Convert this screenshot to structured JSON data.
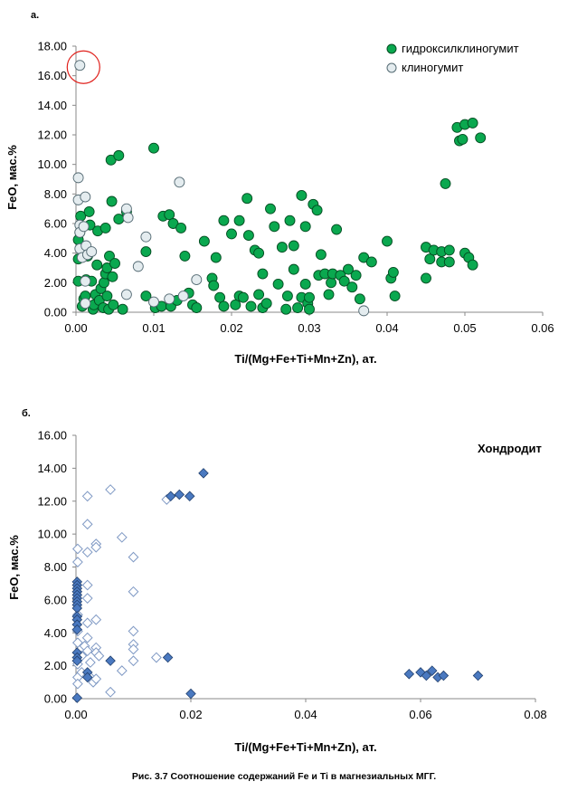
{
  "caption": "Рис. 3.7 Соотношение  содержаний Fe и Ti в магнезиальных  МГГ.",
  "colors": {
    "hydroxyl_fill": "#0aa84f",
    "hydroxyl_stroke": "#044d22",
    "clino_fill": "#e4ecef",
    "clino_stroke": "#556b74",
    "chondro_open_stroke": "#7f99c4",
    "chondro_filled_fill": "#4a79c0",
    "chondro_filled_stroke": "#22406e",
    "highlight_circle": "#e0211c"
  },
  "chart_data": [
    {
      "type": "scatter",
      "panel_label": "а.",
      "xlabel": "Ti/(Mg+Fe+Ti+Mn+Zn), ат.",
      "ylabel": "FeO, мас.%",
      "xlim": [
        0,
        0.06
      ],
      "ylim": [
        0,
        18
      ],
      "x_ticks": [
        "0.00",
        "0.01",
        "0.02",
        "0.03",
        "0.04",
        "0.05",
        "0.06"
      ],
      "y_ticks": [
        "0.00",
        "2.00",
        "4.00",
        "6.00",
        "8.00",
        "10.00",
        "12.00",
        "14.00",
        "16.00",
        "18.00"
      ],
      "grid": false,
      "legend": "top-right",
      "highlight": {
        "x": 0.0005,
        "y": 16.7
      },
      "series": [
        {
          "name": "гидроксилклиногумит",
          "marker": "circle",
          "points": [
            [
              0.0003,
              2.1
            ],
            [
              0.0003,
              3.6
            ],
            [
              0.0003,
              4.9
            ],
            [
              0.0005,
              5.4
            ],
            [
              0.0006,
              6.5
            ],
            [
              0.0008,
              0.4
            ],
            [
              0.001,
              0.9
            ],
            [
              0.0012,
              1.1
            ],
            [
              0.0013,
              2.2
            ],
            [
              0.0015,
              3.8
            ],
            [
              0.0017,
              6.8
            ],
            [
              0.0018,
              5.9
            ],
            [
              0.002,
              2.1
            ],
            [
              0.0022,
              0.2
            ],
            [
              0.0023,
              0.5
            ],
            [
              0.0025,
              1.2
            ],
            [
              0.0027,
              3.2
            ],
            [
              0.0028,
              5.5
            ],
            [
              0.003,
              0.8
            ],
            [
              0.0032,
              1.6
            ],
            [
              0.0035,
              0.3
            ],
            [
              0.0036,
              2.0
            ],
            [
              0.0038,
              2.6
            ],
            [
              0.0038,
              5.7
            ],
            [
              0.004,
              3.0
            ],
            [
              0.004,
              1.1
            ],
            [
              0.0042,
              0.2
            ],
            [
              0.0043,
              3.8
            ],
            [
              0.0045,
              10.3
            ],
            [
              0.0046,
              7.5
            ],
            [
              0.0047,
              2.4
            ],
            [
              0.0048,
              0.5
            ],
            [
              0.005,
              3.3
            ],
            [
              0.0055,
              10.6
            ],
            [
              0.0055,
              6.3
            ],
            [
              0.006,
              0.2
            ],
            [
              0.0065,
              6.8
            ],
            [
              0.009,
              1.1
            ],
            [
              0.009,
              4.1
            ],
            [
              0.01,
              11.1
            ],
            [
              0.0102,
              0.3
            ],
            [
              0.011,
              0.4
            ],
            [
              0.0112,
              6.5
            ],
            [
              0.012,
              6.6
            ],
            [
              0.0122,
              0.4
            ],
            [
              0.0125,
              6.0
            ],
            [
              0.013,
              0.8
            ],
            [
              0.0135,
              5.7
            ],
            [
              0.014,
              3.8
            ],
            [
              0.0145,
              1.3
            ],
            [
              0.015,
              0.5
            ],
            [
              0.0155,
              0.3
            ],
            [
              0.0165,
              4.8
            ],
            [
              0.0175,
              2.3
            ],
            [
              0.0177,
              1.8
            ],
            [
              0.018,
              3.7
            ],
            [
              0.0185,
              1.0
            ],
            [
              0.019,
              6.2
            ],
            [
              0.019,
              0.4
            ],
            [
              0.02,
              5.3
            ],
            [
              0.0205,
              0.5
            ],
            [
              0.021,
              6.2
            ],
            [
              0.021,
              1.1
            ],
            [
              0.0215,
              1.0
            ],
            [
              0.022,
              7.7
            ],
            [
              0.0222,
              5.2
            ],
            [
              0.0225,
              0.4
            ],
            [
              0.023,
              4.2
            ],
            [
              0.0235,
              4.0
            ],
            [
              0.0235,
              1.2
            ],
            [
              0.024,
              2.6
            ],
            [
              0.024,
              0.3
            ],
            [
              0.0245,
              0.6
            ],
            [
              0.025,
              7.0
            ],
            [
              0.0255,
              5.8
            ],
            [
              0.026,
              1.9
            ],
            [
              0.0265,
              4.4
            ],
            [
              0.027,
              0.2
            ],
            [
              0.0272,
              1.1
            ],
            [
              0.0275,
              6.2
            ],
            [
              0.028,
              4.5
            ],
            [
              0.028,
              2.9
            ],
            [
              0.0285,
              0.3
            ],
            [
              0.029,
              1.0
            ],
            [
              0.029,
              7.9
            ],
            [
              0.0295,
              5.8
            ],
            [
              0.0295,
              1.9
            ],
            [
              0.0298,
              0.6
            ],
            [
              0.03,
              1.0
            ],
            [
              0.03,
              0.2
            ],
            [
              0.0305,
              7.3
            ],
            [
              0.031,
              6.9
            ],
            [
              0.0312,
              2.5
            ],
            [
              0.0315,
              3.9
            ],
            [
              0.032,
              2.6
            ],
            [
              0.0325,
              1.2
            ],
            [
              0.0328,
              2.0
            ],
            [
              0.033,
              2.6
            ],
            [
              0.0335,
              5.6
            ],
            [
              0.034,
              2.5
            ],
            [
              0.0345,
              2.1
            ],
            [
              0.035,
              2.9
            ],
            [
              0.0355,
              1.7
            ],
            [
              0.036,
              2.5
            ],
            [
              0.0365,
              0.9
            ],
            [
              0.037,
              3.7
            ],
            [
              0.038,
              3.4
            ],
            [
              0.04,
              4.8
            ],
            [
              0.0405,
              2.3
            ],
            [
              0.0408,
              2.7
            ],
            [
              0.041,
              1.1
            ],
            [
              0.045,
              4.4
            ],
            [
              0.045,
              2.3
            ],
            [
              0.0455,
              3.6
            ],
            [
              0.046,
              4.2
            ],
            [
              0.047,
              3.4
            ],
            [
              0.047,
              4.1
            ],
            [
              0.0475,
              8.7
            ],
            [
              0.048,
              4.2
            ],
            [
              0.048,
              3.4
            ],
            [
              0.049,
              12.5
            ],
            [
              0.0493,
              11.6
            ],
            [
              0.0497,
              11.7
            ],
            [
              0.05,
              12.7
            ],
            [
              0.05,
              4.0
            ],
            [
              0.0505,
              3.7
            ],
            [
              0.051,
              12.8
            ],
            [
              0.051,
              3.2
            ],
            [
              0.052,
              11.8
            ]
          ]
        },
        {
          "name": "клиногумит",
          "marker": "circle",
          "points": [
            [
              0.0005,
              16.7
            ],
            [
              0.0003,
              9.1
            ],
            [
              0.0003,
              7.6
            ],
            [
              0.0005,
              5.9
            ],
            [
              0.0005,
              5.4
            ],
            [
              0.0005,
              4.3
            ],
            [
              0.0008,
              3.7
            ],
            [
              0.001,
              5.8
            ],
            [
              0.0012,
              7.8
            ],
            [
              0.0013,
              4.5
            ],
            [
              0.0015,
              3.9
            ],
            [
              0.002,
              4.1
            ],
            [
              0.0012,
              2.1
            ],
            [
              0.0012,
              0.6
            ],
            [
              0.0065,
              7.0
            ],
            [
              0.0067,
              6.4
            ],
            [
              0.0065,
              1.2
            ],
            [
              0.008,
              3.1
            ],
            [
              0.009,
              5.1
            ],
            [
              0.01,
              0.7
            ],
            [
              0.012,
              0.9
            ],
            [
              0.0133,
              8.8
            ],
            [
              0.0155,
              2.2
            ],
            [
              0.0138,
              1.1
            ],
            [
              0.037,
              0.1
            ]
          ]
        }
      ]
    },
    {
      "type": "scatter",
      "panel_label": "б.",
      "title": "Хондродит",
      "xlabel": "Ti/(Mg+Fe+Ti+Mn+Zn), ат.",
      "ylabel": "FeO, мас.%",
      "xlim": [
        0,
        0.08
      ],
      "ylim": [
        0,
        16
      ],
      "x_ticks": [
        "0.00",
        "0.02",
        "0.04",
        "0.06",
        "0.08"
      ],
      "y_ticks": [
        "0.00",
        "2.00",
        "4.00",
        "6.00",
        "8.00",
        "10.00",
        "12.00",
        "14.00",
        "16.00"
      ],
      "grid": false,
      "series": [
        {
          "marker": "diamond-open",
          "points": [
            [
              0.0003,
              9.1
            ],
            [
              0.0003,
              8.3
            ],
            [
              0.0003,
              5.1
            ],
            [
              0.0003,
              4.1
            ],
            [
              0.0003,
              3.4
            ],
            [
              0.0003,
              2.1
            ],
            [
              0.0003,
              1.3
            ],
            [
              0.0003,
              0.9
            ],
            [
              0.001,
              2.6
            ],
            [
              0.001,
              1.6
            ],
            [
              0.0015,
              3.2
            ],
            [
              0.002,
              12.3
            ],
            [
              0.002,
              10.6
            ],
            [
              0.002,
              8.9
            ],
            [
              0.002,
              6.9
            ],
            [
              0.002,
              6.1
            ],
            [
              0.002,
              4.6
            ],
            [
              0.002,
              3.7
            ],
            [
              0.002,
              2.9
            ],
            [
              0.0025,
              2.2
            ],
            [
              0.0025,
              1.3
            ],
            [
              0.003,
              1.0
            ],
            [
              0.0035,
              9.4
            ],
            [
              0.0035,
              9.2
            ],
            [
              0.0035,
              4.8
            ],
            [
              0.0035,
              3.1
            ],
            [
              0.0035,
              2.8
            ],
            [
              0.0035,
              1.2
            ],
            [
              0.004,
              2.6
            ],
            [
              0.006,
              12.7
            ],
            [
              0.006,
              0.4
            ],
            [
              0.008,
              9.8
            ],
            [
              0.008,
              1.7
            ],
            [
              0.01,
              8.6
            ],
            [
              0.01,
              6.5
            ],
            [
              0.01,
              4.1
            ],
            [
              0.01,
              3.3
            ],
            [
              0.01,
              3.0
            ],
            [
              0.01,
              2.3
            ],
            [
              0.014,
              2.5
            ],
            [
              0.0158,
              12.1
            ]
          ]
        },
        {
          "marker": "diamond-filled",
          "points": [
            [
              0.0002,
              7.1
            ],
            [
              0.0002,
              6.9
            ],
            [
              0.0002,
              6.7
            ],
            [
              0.0002,
              6.5
            ],
            [
              0.0002,
              6.3
            ],
            [
              0.0002,
              6.1
            ],
            [
              0.0002,
              5.9
            ],
            [
              0.0002,
              5.7
            ],
            [
              0.0002,
              5.5
            ],
            [
              0.0002,
              5.0
            ],
            [
              0.0002,
              4.8
            ],
            [
              0.0002,
              4.5
            ],
            [
              0.0002,
              4.2
            ],
            [
              0.0002,
              2.8
            ],
            [
              0.0002,
              2.5
            ],
            [
              0.0002,
              2.3
            ],
            [
              0.0002,
              0.05
            ],
            [
              0.002,
              1.6
            ],
            [
              0.002,
              1.3
            ],
            [
              0.006,
              2.3
            ],
            [
              0.016,
              2.5
            ],
            [
              0.0165,
              12.3
            ],
            [
              0.018,
              12.4
            ],
            [
              0.0198,
              12.3
            ],
            [
              0.0222,
              13.7
            ],
            [
              0.02,
              0.3
            ],
            [
              0.058,
              1.5
            ],
            [
              0.06,
              1.6
            ],
            [
              0.061,
              1.4
            ],
            [
              0.062,
              1.7
            ],
            [
              0.063,
              1.3
            ],
            [
              0.064,
              1.4
            ],
            [
              0.07,
              1.4
            ]
          ]
        }
      ]
    }
  ]
}
